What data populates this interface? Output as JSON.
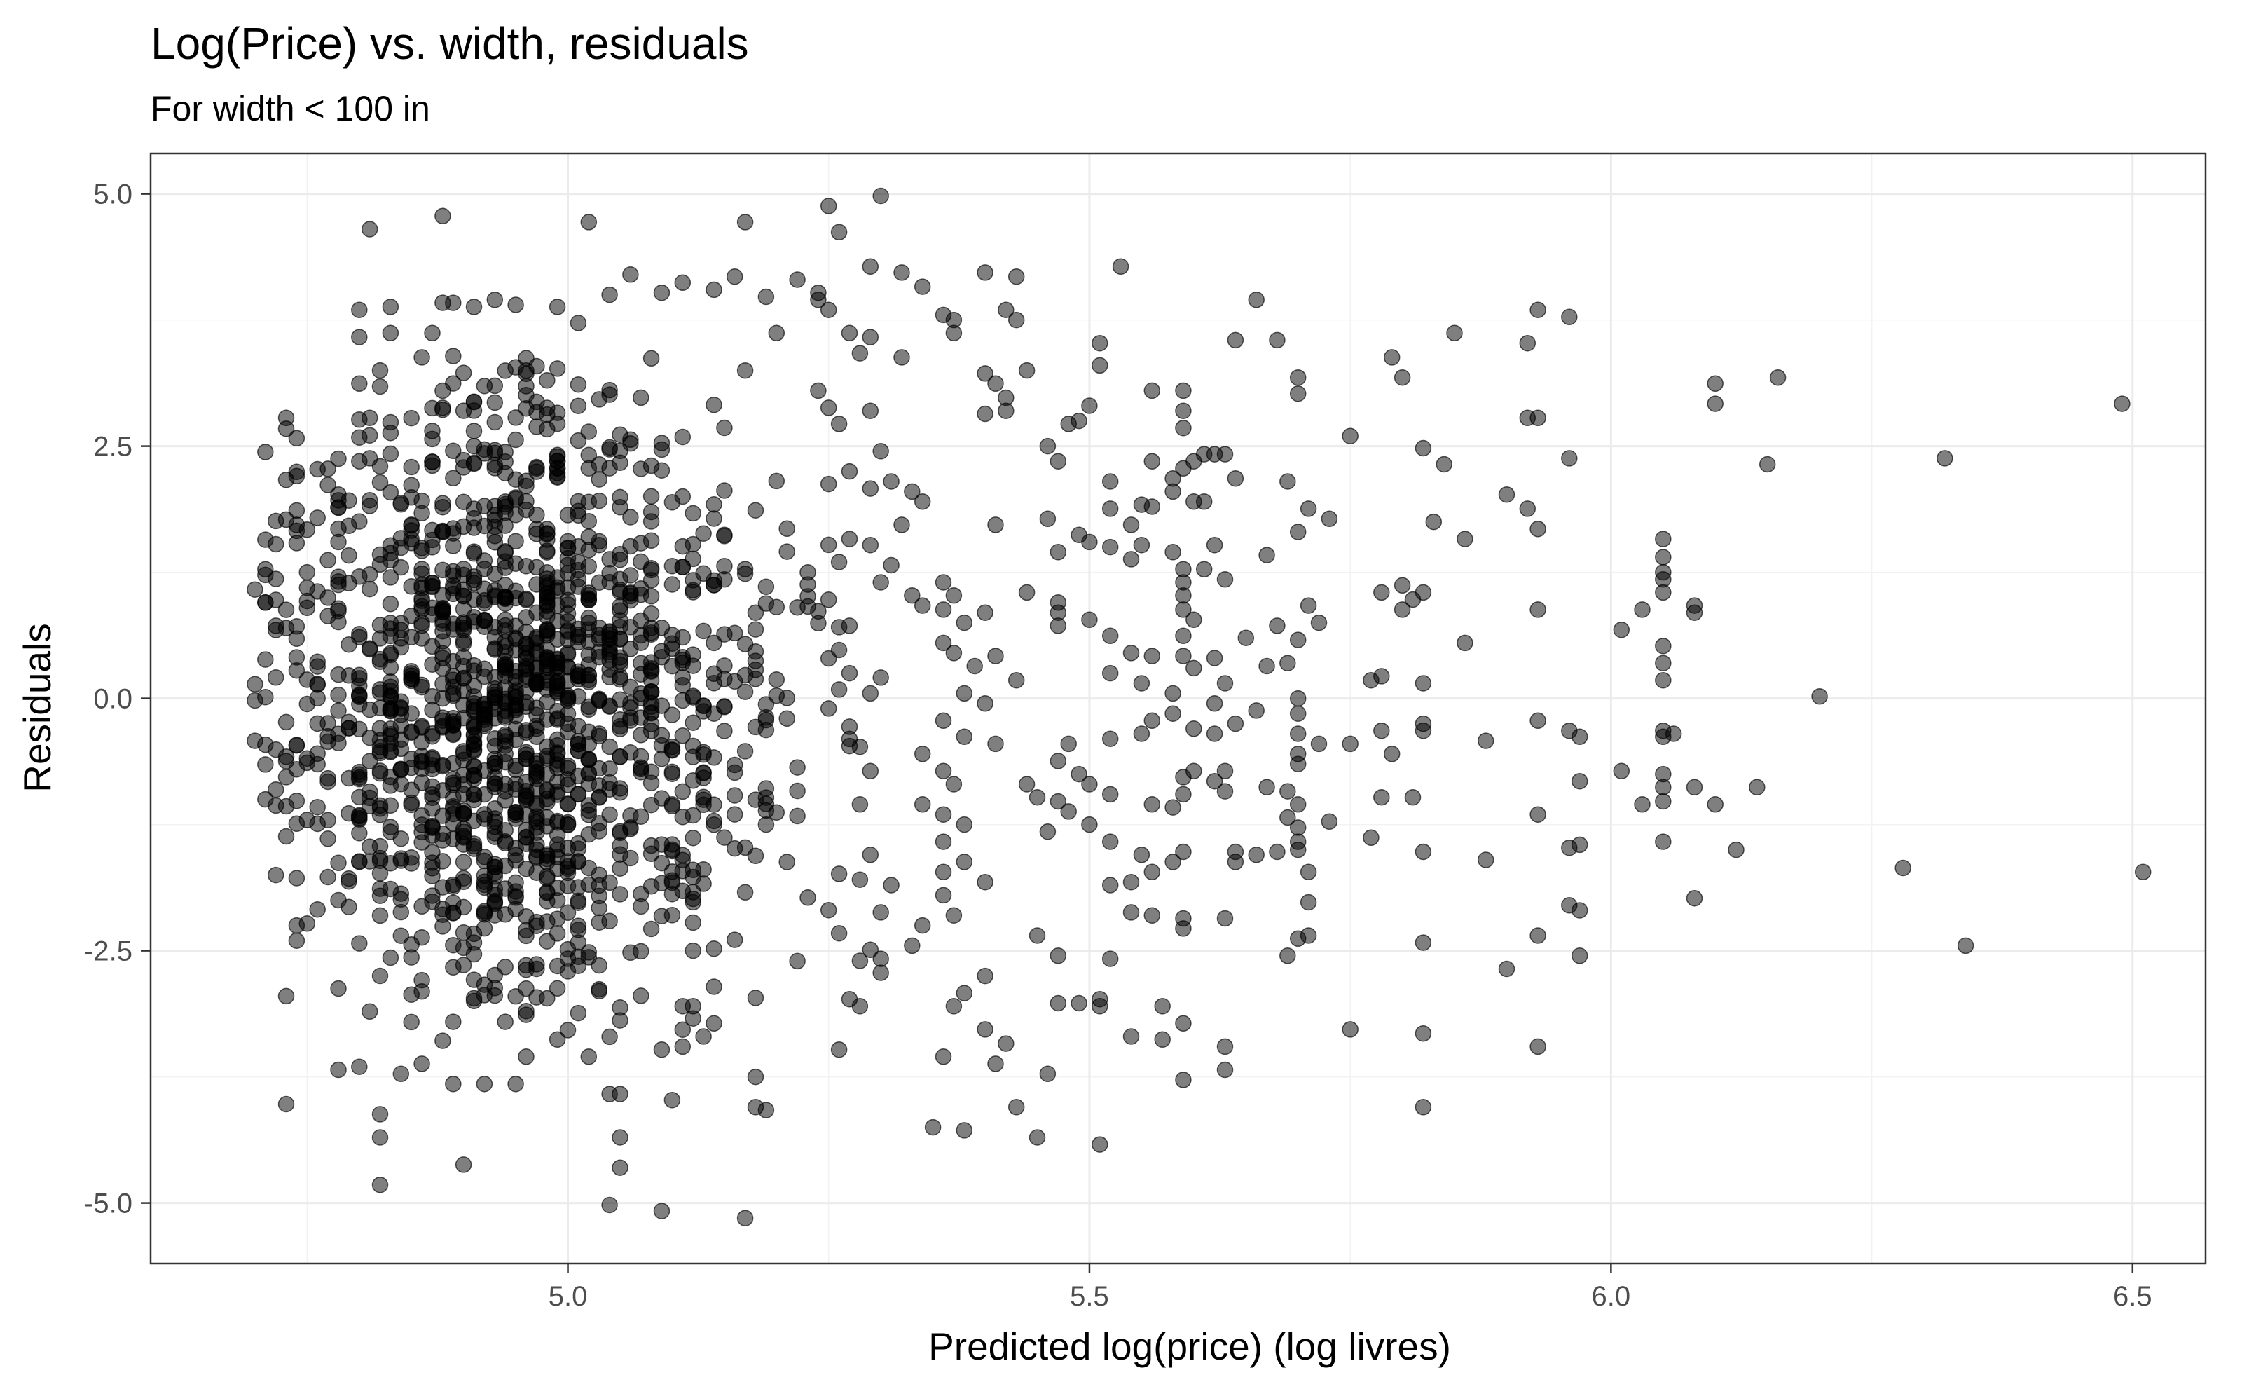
{
  "chart_data": {
    "type": "scatter",
    "title": "Log(Price) vs. width, residuals",
    "subtitle": "For width < 100 in",
    "xlabel": "Predicted log(price) (log livres)",
    "ylabel": "Residuals",
    "xlim": [
      4.6,
      6.57
    ],
    "ylim": [
      -5.6,
      5.4
    ],
    "x_ticks": [
      5.0,
      5.5,
      6.0,
      6.5
    ],
    "x_tick_labels": [
      "5.0",
      "5.5",
      "6.0",
      "6.5"
    ],
    "y_ticks": [
      -5.0,
      -2.5,
      0.0,
      2.5,
      5.0
    ],
    "y_tick_labels": [
      "-5.0",
      "-2.5",
      "0.0",
      "2.5",
      "5.0"
    ],
    "grid": true,
    "legend": "none",
    "point_color": "#000000",
    "point_alpha": 0.5,
    "points": [
      [
        4.81,
        4.65
      ],
      [
        4.88,
        4.78
      ],
      [
        5.02,
        4.72
      ],
      [
        5.17,
        4.72
      ],
      [
        5.25,
        4.88
      ],
      [
        5.26,
        4.62
      ],
      [
        5.3,
        4.98
      ],
      [
        5.29,
        4.28
      ],
      [
        5.32,
        4.22
      ],
      [
        5.34,
        4.08
      ],
      [
        5.4,
        4.22
      ],
      [
        5.43,
        4.18
      ],
      [
        5.53,
        4.28
      ],
      [
        5.66,
        3.95
      ],
      [
        5.42,
        3.85
      ],
      [
        5.43,
        3.75
      ],
      [
        5.36,
        3.8
      ],
      [
        5.64,
        3.55
      ],
      [
        5.68,
        3.55
      ],
      [
        5.51,
        3.52
      ],
      [
        5.51,
        3.3
      ],
      [
        5.85,
        3.62
      ],
      [
        5.79,
        3.38
      ],
      [
        5.8,
        3.18
      ],
      [
        5.92,
        3.52
      ],
      [
        5.93,
        3.85
      ],
      [
        5.96,
        3.78
      ],
      [
        6.1,
        3.12
      ],
      [
        6.16,
        3.18
      ],
      [
        6.1,
        2.92
      ],
      [
        5.4,
        3.22
      ],
      [
        5.44,
        3.25
      ],
      [
        5.41,
        3.12
      ],
      [
        5.42,
        2.98
      ],
      [
        5.4,
        2.82
      ],
      [
        5.42,
        2.85
      ],
      [
        5.5,
        2.9
      ],
      [
        5.48,
        2.72
      ],
      [
        5.49,
        2.75
      ],
      [
        5.56,
        3.05
      ],
      [
        5.59,
        3.05
      ],
      [
        5.59,
        2.85
      ],
      [
        5.59,
        2.68
      ],
      [
        5.7,
        3.18
      ],
      [
        5.7,
        3.02
      ],
      [
        5.75,
        2.6
      ],
      [
        5.82,
        2.48
      ],
      [
        5.84,
        2.32
      ],
      [
        5.92,
        2.78
      ],
      [
        5.93,
        2.78
      ],
      [
        5.96,
        2.38
      ],
      [
        6.15,
        2.32
      ],
      [
        6.32,
        2.38
      ],
      [
        6.49,
        2.92
      ],
      [
        5.46,
        2.5
      ],
      [
        5.47,
        2.35
      ],
      [
        5.52,
        2.15
      ],
      [
        5.56,
        2.35
      ],
      [
        5.6,
        2.35
      ],
      [
        5.61,
        2.42
      ],
      [
        5.62,
        2.42
      ],
      [
        5.63,
        2.42
      ],
      [
        5.59,
        2.28
      ],
      [
        5.58,
        2.18
      ],
      [
        5.64,
        2.18
      ],
      [
        5.69,
        2.15
      ],
      [
        5.58,
        2.05
      ],
      [
        5.6,
        1.95
      ],
      [
        5.61,
        1.95
      ],
      [
        5.52,
        1.88
      ],
      [
        5.55,
        1.92
      ],
      [
        5.56,
        1.9
      ],
      [
        5.54,
        1.72
      ],
      [
        5.71,
        1.88
      ],
      [
        5.73,
        1.78
      ],
      [
        5.7,
        1.65
      ],
      [
        5.83,
        1.75
      ],
      [
        5.86,
        1.58
      ],
      [
        5.9,
        2.02
      ],
      [
        5.92,
        1.88
      ],
      [
        5.93,
        1.68
      ],
      [
        6.05,
        1.58
      ],
      [
        6.05,
        1.4
      ],
      [
        5.41,
        1.72
      ],
      [
        5.46,
        1.78
      ],
      [
        5.49,
        1.62
      ],
      [
        5.47,
        1.45
      ],
      [
        5.5,
        1.55
      ],
      [
        5.52,
        1.5
      ],
      [
        5.54,
        1.38
      ],
      [
        5.55,
        1.52
      ],
      [
        5.58,
        1.45
      ],
      [
        5.62,
        1.52
      ],
      [
        5.61,
        1.28
      ],
      [
        5.67,
        1.42
      ],
      [
        5.59,
        1.28
      ],
      [
        5.59,
        1.15
      ],
      [
        5.59,
        1.02
      ],
      [
        5.59,
        0.88
      ],
      [
        5.63,
        1.18
      ],
      [
        5.6,
        0.78
      ],
      [
        5.59,
        0.62
      ],
      [
        5.65,
        0.6
      ],
      [
        5.68,
        0.72
      ],
      [
        5.71,
        0.92
      ],
      [
        5.72,
        0.75
      ],
      [
        5.7,
        0.58
      ],
      [
        5.69,
        0.35
      ],
      [
        5.67,
        0.32
      ],
      [
        5.78,
        1.05
      ],
      [
        5.8,
        1.12
      ],
      [
        5.81,
        0.98
      ],
      [
        5.82,
        1.05
      ],
      [
        5.8,
        0.88
      ],
      [
        5.86,
        0.55
      ],
      [
        5.93,
        0.88
      ],
      [
        6.01,
        0.68
      ],
      [
        6.03,
        0.88
      ],
      [
        6.05,
        1.25
      ],
      [
        6.05,
        1.18
      ],
      [
        6.05,
        1.05
      ],
      [
        6.08,
        0.92
      ],
      [
        6.08,
        0.85
      ],
      [
        6.05,
        0.52
      ],
      [
        6.05,
        0.35
      ],
      [
        6.05,
        0.18
      ],
      [
        6.2,
        0.02
      ],
      [
        5.44,
        1.05
      ],
      [
        5.47,
        0.95
      ],
      [
        5.47,
        0.85
      ],
      [
        5.5,
        0.78
      ],
      [
        5.47,
        0.72
      ],
      [
        5.52,
        0.62
      ],
      [
        5.54,
        0.45
      ],
      [
        5.56,
        0.42
      ],
      [
        5.59,
        0.42
      ],
      [
        5.6,
        0.3
      ],
      [
        5.62,
        0.4
      ],
      [
        5.63,
        0.15
      ],
      [
        5.52,
        0.25
      ],
      [
        5.55,
        0.15
      ],
      [
        5.58,
        0.05
      ],
      [
        5.62,
        -0.05
      ],
      [
        5.58,
        -0.15
      ],
      [
        5.56,
        -0.22
      ],
      [
        5.55,
        -0.35
      ],
      [
        5.52,
        -0.4
      ],
      [
        5.6,
        -0.3
      ],
      [
        5.62,
        -0.35
      ],
      [
        5.64,
        -0.25
      ],
      [
        5.66,
        -0.12
      ],
      [
        5.7,
        0.0
      ],
      [
        5.7,
        -0.15
      ],
      [
        5.7,
        -0.35
      ],
      [
        5.72,
        -0.45
      ],
      [
        5.7,
        -0.55
      ],
      [
        5.7,
        -0.65
      ],
      [
        5.75,
        -0.45
      ],
      [
        5.78,
        -0.32
      ],
      [
        5.78,
        0.22
      ],
      [
        5.77,
        0.18
      ],
      [
        5.79,
        -0.55
      ],
      [
        5.82,
        -0.25
      ],
      [
        5.82,
        -0.32
      ],
      [
        5.82,
        0.15
      ],
      [
        5.88,
        -0.42
      ],
      [
        5.93,
        -0.22
      ],
      [
        5.96,
        -0.32
      ],
      [
        5.97,
        -0.38
      ],
      [
        6.01,
        -0.72
      ],
      [
        6.05,
        -0.32
      ],
      [
        6.05,
        -0.38
      ],
      [
        6.06,
        -0.35
      ],
      [
        5.97,
        -0.82
      ],
      [
        5.48,
        -0.45
      ],
      [
        5.47,
        -0.62
      ],
      [
        5.49,
        -0.75
      ],
      [
        5.5,
        -0.85
      ],
      [
        5.52,
        -0.95
      ],
      [
        5.47,
        -1.02
      ],
      [
        5.44,
        -0.85
      ],
      [
        5.45,
        -0.98
      ],
      [
        5.48,
        -1.12
      ],
      [
        5.5,
        -1.25
      ],
      [
        5.46,
        -1.32
      ],
      [
        5.52,
        -1.42
      ],
      [
        5.55,
        -1.55
      ],
      [
        5.56,
        -1.05
      ],
      [
        5.58,
        -1.08
      ],
      [
        5.59,
        -0.95
      ],
      [
        5.59,
        -0.78
      ],
      [
        5.6,
        -0.72
      ],
      [
        5.62,
        -0.82
      ],
      [
        5.63,
        -0.72
      ],
      [
        5.63,
        -0.92
      ],
      [
        5.67,
        -0.88
      ],
      [
        5.69,
        -0.92
      ],
      [
        5.7,
        -1.05
      ],
      [
        5.69,
        -1.18
      ],
      [
        5.7,
        -1.28
      ],
      [
        5.73,
        -1.22
      ],
      [
        5.7,
        -1.42
      ],
      [
        5.7,
        -1.5
      ],
      [
        5.68,
        -1.52
      ],
      [
        5.66,
        -1.55
      ],
      [
        5.64,
        -1.52
      ],
      [
        5.64,
        -1.62
      ],
      [
        5.59,
        -1.52
      ],
      [
        5.58,
        -1.62
      ],
      [
        5.56,
        -1.72
      ],
      [
        5.54,
        -1.82
      ],
      [
        5.52,
        -1.85
      ],
      [
        5.54,
        -2.12
      ],
      [
        5.56,
        -2.15
      ],
      [
        5.59,
        -2.18
      ],
      [
        5.59,
        -2.28
      ],
      [
        5.63,
        -2.18
      ],
      [
        5.71,
        -1.72
      ],
      [
        5.71,
        -2.02
      ],
      [
        5.7,
        -2.38
      ],
      [
        5.71,
        -2.35
      ],
      [
        5.69,
        -2.55
      ],
      [
        5.77,
        -1.38
      ],
      [
        5.82,
        -1.52
      ],
      [
        5.88,
        -1.6
      ],
      [
        5.81,
        -0.98
      ],
      [
        5.78,
        -0.98
      ],
      [
        5.93,
        -1.15
      ],
      [
        5.96,
        -1.48
      ],
      [
        5.97,
        -1.45
      ],
      [
        5.96,
        -2.05
      ],
      [
        5.97,
        -2.1
      ],
      [
        5.93,
        -2.35
      ],
      [
        5.97,
        -2.55
      ],
      [
        6.03,
        -1.05
      ],
      [
        6.05,
        -0.75
      ],
      [
        6.05,
        -0.88
      ],
      [
        6.05,
        -1.02
      ],
      [
        6.08,
        -0.88
      ],
      [
        6.1,
        -1.05
      ],
      [
        6.14,
        -0.88
      ],
      [
        6.05,
        -1.42
      ],
      [
        6.12,
        -1.5
      ],
      [
        6.08,
        -1.98
      ],
      [
        6.28,
        -1.68
      ],
      [
        6.34,
        -2.45
      ],
      [
        6.51,
        -1.72
      ],
      [
        5.47,
        -2.55
      ],
      [
        5.45,
        -2.35
      ],
      [
        5.47,
        -3.02
      ],
      [
        5.49,
        -3.02
      ],
      [
        5.51,
        -2.98
      ],
      [
        5.51,
        -3.05
      ],
      [
        5.54,
        -3.35
      ],
      [
        5.57,
        -3.38
      ],
      [
        5.59,
        -3.22
      ],
      [
        5.59,
        -3.78
      ],
      [
        5.63,
        -3.45
      ],
      [
        5.63,
        -3.68
      ],
      [
        5.57,
        -3.05
      ],
      [
        5.52,
        -2.58
      ],
      [
        5.45,
        -4.35
      ],
      [
        5.51,
        -4.42
      ],
      [
        5.43,
        -4.05
      ],
      [
        5.46,
        -3.72
      ],
      [
        5.4,
        -3.28
      ],
      [
        5.42,
        -3.42
      ],
      [
        5.38,
        -2.92
      ],
      [
        5.4,
        -2.75
      ],
      [
        5.37,
        -3.05
      ],
      [
        5.41,
        -3.62
      ],
      [
        5.38,
        -4.28
      ],
      [
        5.35,
        -4.25
      ],
      [
        5.36,
        -3.55
      ],
      [
        5.28,
        -3.05
      ],
      [
        5.27,
        -2.98
      ],
      [
        5.26,
        -3.48
      ],
      [
        5.75,
        -3.28
      ],
      [
        5.82,
        -3.32
      ],
      [
        5.82,
        -4.05
      ],
      [
        5.93,
        -3.45
      ],
      [
        5.9,
        -2.68
      ],
      [
        5.82,
        -2.42
      ],
      [
        4.73,
        -4.02
      ],
      [
        4.82,
        -4.82
      ],
      [
        4.9,
        -4.62
      ],
      [
        4.82,
        -4.12
      ],
      [
        4.82,
        -4.35
      ],
      [
        5.04,
        -5.02
      ],
      [
        5.09,
        -5.08
      ],
      [
        5.17,
        -5.15
      ],
      [
        5.05,
        -4.65
      ],
      [
        5.05,
        -4.35
      ],
      [
        5.1,
        -3.98
      ],
      [
        5.18,
        -4.05
      ],
      [
        5.19,
        -4.08
      ],
      [
        5.18,
        -3.75
      ],
      [
        5.13,
        -3.35
      ],
      [
        5.09,
        -3.48
      ],
      [
        5.11,
        -3.45
      ],
      [
        5.12,
        -3.05
      ],
      [
        5.14,
        -3.22
      ],
      [
        4.78,
        -3.68
      ],
      [
        4.8,
        -3.65
      ],
      [
        4.84,
        -3.72
      ],
      [
        4.86,
        -3.62
      ],
      [
        4.89,
        -3.82
      ],
      [
        4.92,
        -3.82
      ],
      [
        4.95,
        -3.82
      ],
      [
        4.96,
        -3.55
      ],
      [
        4.99,
        -3.38
      ],
      [
        5.02,
        -3.55
      ],
      [
        5.04,
        -3.92
      ],
      [
        5.05,
        -3.92
      ],
      [
        4.73,
        -2.95
      ],
      [
        4.74,
        -2.4
      ],
      [
        4.74,
        -2.25
      ],
      [
        4.72,
        -1.75
      ],
      [
        4.71,
        -1.0
      ],
      [
        4.73,
        -0.78
      ],
      [
        4.7,
        -0.42
      ],
      [
        4.7,
        -0.02
      ],
      [
        4.72,
        0.72
      ],
      [
        4.71,
        0.95
      ],
      [
        4.71,
        1.28
      ],
      [
        4.74,
        1.72
      ],
      [
        4.73,
        2.78
      ],
      [
        4.78,
        2.02
      ],
      [
        4.78,
        1.55
      ],
      [
        4.8,
        2.35
      ],
      [
        4.82,
        2.3
      ],
      [
        4.81,
        2.78
      ],
      [
        4.8,
        3.12
      ],
      [
        4.82,
        3.25
      ],
      [
        4.8,
        3.85
      ],
      [
        4.8,
        3.58
      ],
      [
        4.83,
        3.88
      ],
      [
        4.83,
        3.62
      ],
      [
        4.86,
        3.38
      ],
      [
        4.87,
        3.62
      ],
      [
        4.88,
        3.92
      ],
      [
        4.89,
        3.92
      ],
      [
        4.91,
        3.88
      ],
      [
        4.93,
        3.95
      ],
      [
        4.95,
        3.9
      ],
      [
        4.99,
        3.88
      ],
      [
        5.01,
        3.72
      ],
      [
        5.04,
        4.0
      ],
      [
        5.06,
        4.2
      ],
      [
        5.09,
        4.02
      ],
      [
        5.11,
        4.12
      ],
      [
        5.14,
        4.05
      ],
      [
        5.16,
        4.18
      ],
      [
        5.19,
        3.98
      ],
      [
        5.2,
        3.62
      ],
      [
        5.22,
        4.15
      ],
      [
        5.24,
        3.95
      ],
      [
        5.24,
        4.02
      ],
      [
        5.25,
        3.85
      ],
      [
        5.27,
        3.62
      ],
      [
        5.29,
        3.58
      ],
      [
        5.28,
        3.42
      ],
      [
        5.32,
        3.38
      ],
      [
        5.37,
        3.62
      ],
      [
        5.37,
        3.75
      ],
      [
        5.24,
        3.05
      ],
      [
        5.25,
        2.88
      ],
      [
        5.26,
        2.72
      ],
      [
        5.29,
        2.85
      ],
      [
        5.3,
        2.45
      ],
      [
        5.27,
        2.25
      ],
      [
        5.29,
        2.08
      ],
      [
        5.31,
        2.15
      ],
      [
        5.33,
        2.05
      ],
      [
        5.34,
        1.95
      ],
      [
        5.32,
        1.72
      ],
      [
        5.27,
        1.58
      ],
      [
        5.29,
        1.52
      ],
      [
        5.31,
        1.32
      ],
      [
        5.3,
        1.15
      ],
      [
        5.33,
        1.02
      ],
      [
        5.34,
        0.92
      ],
      [
        5.36,
        1.15
      ],
      [
        5.37,
        1.02
      ],
      [
        5.36,
        0.88
      ],
      [
        5.38,
        0.75
      ],
      [
        5.4,
        0.85
      ],
      [
        5.36,
        0.55
      ],
      [
        5.37,
        0.45
      ],
      [
        5.39,
        0.32
      ],
      [
        5.41,
        0.42
      ],
      [
        5.43,
        0.18
      ],
      [
        5.38,
        0.05
      ],
      [
        5.4,
        -0.05
      ],
      [
        5.36,
        -0.22
      ],
      [
        5.38,
        -0.38
      ],
      [
        5.41,
        -0.45
      ],
      [
        5.34,
        -0.55
      ],
      [
        5.36,
        -0.72
      ],
      [
        5.37,
        -0.85
      ],
      [
        5.34,
        -1.05
      ],
      [
        5.36,
        -1.15
      ],
      [
        5.38,
        -1.25
      ],
      [
        5.36,
        -1.42
      ],
      [
        5.38,
        -1.62
      ],
      [
        5.36,
        -1.72
      ],
      [
        5.4,
        -1.82
      ],
      [
        5.36,
        -1.95
      ],
      [
        5.37,
        -2.15
      ],
      [
        5.34,
        -2.25
      ],
      [
        5.33,
        -2.45
      ],
      [
        5.3,
        -2.58
      ],
      [
        5.3,
        -2.12
      ],
      [
        5.31,
        -1.85
      ],
      [
        5.29,
        -1.55
      ],
      [
        5.28,
        -1.05
      ],
      [
        5.29,
        -0.72
      ],
      [
        5.28,
        -0.48
      ],
      [
        5.27,
        -0.28
      ],
      [
        5.29,
        0.05
      ],
      [
        5.27,
        0.25
      ],
      [
        5.26,
        0.48
      ],
      [
        5.27,
        0.72
      ]
    ],
    "dense_cluster": {
      "x_range": [
        4.7,
        5.3
      ],
      "y_range": [
        -3.4,
        3.4
      ],
      "peak_x": 4.95,
      "peak_y": 0.0,
      "approx_points": 1500
    }
  }
}
